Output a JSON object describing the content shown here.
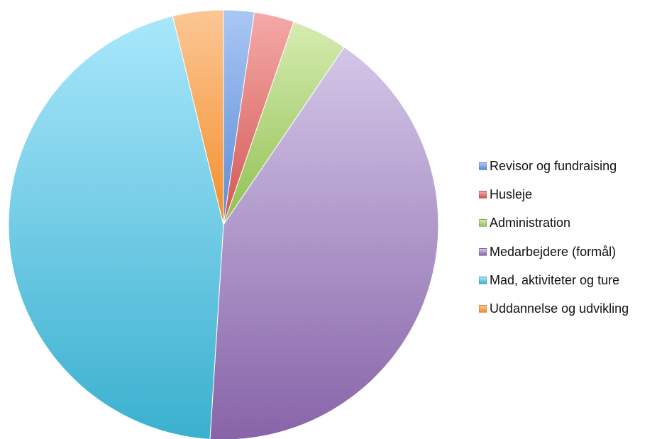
{
  "chart_data": {
    "type": "pie",
    "title": "",
    "legend_position": "right",
    "series": [
      {
        "categories": [
          "Revisor og fundraising",
          "Husleje",
          "Administration",
          "Medarbejdere (formål)",
          "Mad, aktiviteter og ture",
          "Uddannelse og udvikling"
        ],
        "values": [
          2.3,
          3.0,
          4.2,
          41.5,
          45.2,
          3.8
        ],
        "colors": [
          [
            "#a9c7f3",
            "#5b8bd6"
          ],
          [
            "#f4aaa8",
            "#d35652"
          ],
          [
            "#d6ecb0",
            "#90c052"
          ],
          [
            "#d3c6e8",
            "#8764a8"
          ],
          [
            "#a9e7fb",
            "#3ab0cf"
          ],
          [
            "#fbc795",
            "#f58d2a"
          ]
        ]
      }
    ]
  }
}
